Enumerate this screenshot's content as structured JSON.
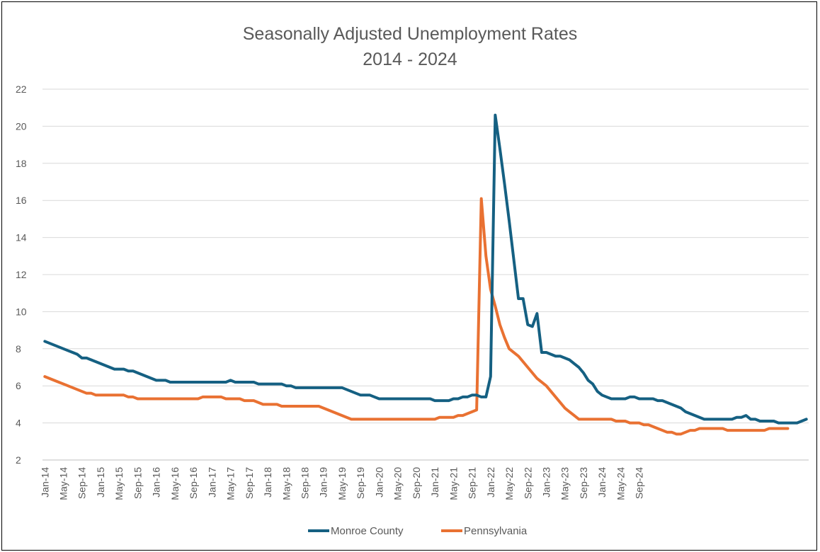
{
  "chart_data": {
    "type": "line",
    "title": "Seasonally Adjusted Unemployment Rates",
    "subtitle": "2014 - 2024",
    "xlabel": "",
    "ylabel": "",
    "ylim": [
      2,
      22
    ],
    "yticks": [
      2,
      4,
      6,
      8,
      10,
      12,
      14,
      16,
      18,
      20,
      22
    ],
    "grid": true,
    "legend_position": "bottom",
    "start_month": "Jan-14",
    "xtick_labels": [
      "Jan-14",
      "May-14",
      "Sep-14",
      "Jan-15",
      "May-15",
      "Sep-15",
      "Jan-16",
      "May-16",
      "Sep-16",
      "Jan-17",
      "May-17",
      "Sep-17",
      "Jan-18",
      "May-18",
      "Sep-18",
      "Jan-19",
      "May-19",
      "Sep-19",
      "Jan-20",
      "May-20",
      "Sep-20",
      "Jan-21",
      "May-21",
      "Sep-21",
      "Jan-22",
      "May-22",
      "Sep-22",
      "Jan-23",
      "May-23",
      "Sep-23",
      "Jan-24",
      "May-24",
      "Sep-24"
    ],
    "series": [
      {
        "name": "Monroe County",
        "color": "#156082",
        "values": [
          8.4,
          8.3,
          8.2,
          8.1,
          8.0,
          7.9,
          7.8,
          7.7,
          7.5,
          7.5,
          7.4,
          7.3,
          7.2,
          7.1,
          7.0,
          6.9,
          6.9,
          6.9,
          6.8,
          6.8,
          6.7,
          6.6,
          6.5,
          6.4,
          6.3,
          6.3,
          6.3,
          6.2,
          6.2,
          6.2,
          6.2,
          6.2,
          6.2,
          6.2,
          6.2,
          6.2,
          6.2,
          6.2,
          6.2,
          6.2,
          6.3,
          6.2,
          6.2,
          6.2,
          6.2,
          6.2,
          6.1,
          6.1,
          6.1,
          6.1,
          6.1,
          6.1,
          6.0,
          6.0,
          5.9,
          5.9,
          5.9,
          5.9,
          5.9,
          5.9,
          5.9,
          5.9,
          5.9,
          5.9,
          5.9,
          5.8,
          5.7,
          5.6,
          5.5,
          5.5,
          5.5,
          5.4,
          5.3,
          5.3,
          5.3,
          5.3,
          5.3,
          5.3,
          5.3,
          5.3,
          5.3,
          5.3,
          5.3,
          5.3,
          5.2,
          5.2,
          5.2,
          5.2,
          5.3,
          5.3,
          5.4,
          5.4,
          5.5,
          5.5,
          5.4,
          5.4,
          6.5,
          20.6,
          18.8,
          16.9,
          14.9,
          12.8,
          10.7,
          10.7,
          9.3,
          9.2,
          9.9,
          7.8,
          7.8,
          7.7,
          7.6,
          7.6,
          7.5,
          7.4,
          7.2,
          7.0,
          6.7,
          6.3,
          6.1,
          5.7,
          5.5,
          5.4,
          5.3,
          5.3,
          5.3,
          5.3,
          5.4,
          5.4,
          5.3,
          5.3,
          5.3,
          5.3,
          5.2,
          5.2,
          5.1,
          5.0,
          4.9,
          4.8,
          4.6,
          4.5,
          4.4,
          4.3,
          4.2,
          4.2,
          4.2,
          4.2,
          4.2,
          4.2,
          4.2,
          4.3,
          4.3,
          4.4,
          4.2,
          4.2,
          4.1,
          4.1,
          4.1,
          4.1,
          4.0,
          4.0,
          4.0,
          4.0,
          4.0,
          4.1,
          4.2
        ]
      },
      {
        "name": "Pennsylvania",
        "color": "#E97132",
        "values": [
          6.5,
          6.4,
          6.3,
          6.2,
          6.1,
          6.0,
          5.9,
          5.8,
          5.7,
          5.6,
          5.6,
          5.5,
          5.5,
          5.5,
          5.5,
          5.5,
          5.5,
          5.5,
          5.4,
          5.4,
          5.3,
          5.3,
          5.3,
          5.3,
          5.3,
          5.3,
          5.3,
          5.3,
          5.3,
          5.3,
          5.3,
          5.3,
          5.3,
          5.3,
          5.4,
          5.4,
          5.4,
          5.4,
          5.4,
          5.3,
          5.3,
          5.3,
          5.3,
          5.2,
          5.2,
          5.2,
          5.1,
          5.0,
          5.0,
          5.0,
          5.0,
          4.9,
          4.9,
          4.9,
          4.9,
          4.9,
          4.9,
          4.9,
          4.9,
          4.9,
          4.8,
          4.7,
          4.6,
          4.5,
          4.4,
          4.3,
          4.2,
          4.2,
          4.2,
          4.2,
          4.2,
          4.2,
          4.2,
          4.2,
          4.2,
          4.2,
          4.2,
          4.2,
          4.2,
          4.2,
          4.2,
          4.2,
          4.2,
          4.2,
          4.2,
          4.3,
          4.3,
          4.3,
          4.3,
          4.4,
          4.4,
          4.5,
          4.6,
          4.7,
          16.1,
          13.0,
          11.2,
          10.3,
          9.3,
          8.6,
          8.0,
          7.8,
          7.6,
          7.3,
          7.0,
          6.7,
          6.4,
          6.2,
          6.0,
          5.7,
          5.4,
          5.1,
          4.8,
          4.6,
          4.4,
          4.2,
          4.2,
          4.2,
          4.2,
          4.2,
          4.2,
          4.2,
          4.2,
          4.1,
          4.1,
          4.1,
          4.0,
          4.0,
          4.0,
          3.9,
          3.9,
          3.8,
          3.7,
          3.6,
          3.5,
          3.5,
          3.4,
          3.4,
          3.5,
          3.6,
          3.6,
          3.7,
          3.7,
          3.7,
          3.7,
          3.7,
          3.7,
          3.6,
          3.6,
          3.6,
          3.6,
          3.6,
          3.6,
          3.6,
          3.6,
          3.6,
          3.7,
          3.7,
          3.7,
          3.7,
          3.7
        ]
      }
    ]
  }
}
